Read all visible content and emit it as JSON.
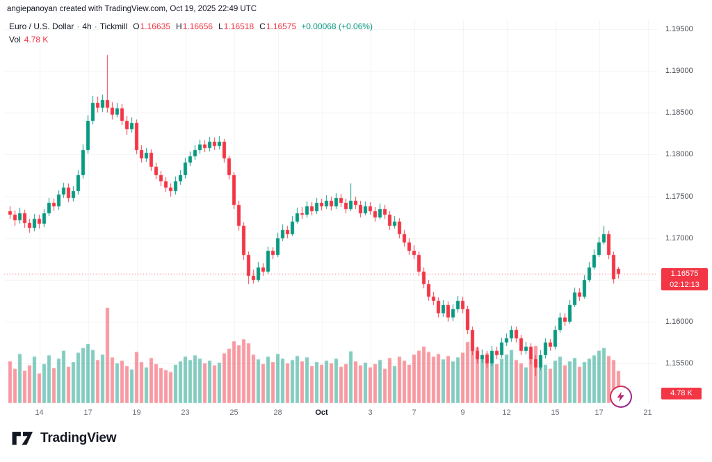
{
  "attribution": "angiepanoyan created with TradingView.com, Oct 19, 2025 22:49 UTC",
  "legend": {
    "symbol_title": "Euro / U.S. Dollar",
    "separator": "·",
    "interval": "4h",
    "exchange": "Tickmill",
    "ohlc": {
      "o_label": "O",
      "o": "1.16635",
      "h_label": "H",
      "h": "1.16656",
      "l_label": "L",
      "l": "1.16518",
      "c_label": "C",
      "c": "1.16575",
      "change": "+0.00068 (+0.06%)"
    },
    "volume_label": "Vol",
    "volume_value": "4.78 K"
  },
  "last_price_label": {
    "price": "1.16575",
    "countdown": "02:12:13"
  },
  "volume_axis_label": "4.78 K",
  "footer": {
    "logo_text": "TradingView"
  },
  "chart_data": {
    "type": "candlestick",
    "title": "Euro / U.S. Dollar · 4h · Tickmill",
    "pair": "Euro / U.S. Dollar",
    "interval": "4h",
    "broker": "Tickmill",
    "legend_note": "grid faint, volume overlay bottom, last-price dotted line",
    "price_axis": {
      "min": 1.155,
      "max": 1.195,
      "tick_step": 0.005,
      "ticks": [
        {
          "label": "1.19500",
          "value": 1.195
        },
        {
          "label": "1.19000",
          "value": 1.19
        },
        {
          "label": "1.18500",
          "value": 1.185
        },
        {
          "label": "1.18000",
          "value": 1.18
        },
        {
          "label": "1.17500",
          "value": 1.175
        },
        {
          "label": "1.17000",
          "value": 1.17
        },
        {
          "label": "1.16500",
          "value": 1.165
        },
        {
          "label": "1.16000",
          "value": 1.16
        },
        {
          "label": "1.15500",
          "value": 1.155
        }
      ]
    },
    "time_axis_ticks": [
      {
        "label": "14",
        "index": 6
      },
      {
        "label": "17",
        "index": 16
      },
      {
        "label": "19",
        "index": 26
      },
      {
        "label": "23",
        "index": 36
      },
      {
        "label": "25",
        "index": 46
      },
      {
        "label": "28",
        "index": 55
      },
      {
        "label": "Oct",
        "index": 64,
        "bold": true
      },
      {
        "label": "3",
        "index": 74
      },
      {
        "label": "7",
        "index": 83
      },
      {
        "label": "9",
        "index": 93
      },
      {
        "label": "12",
        "index": 102
      },
      {
        "label": "15",
        "index": 112
      },
      {
        "label": "17",
        "index": 121
      },
      {
        "label": "21",
        "index": 131
      }
    ],
    "last": {
      "open": 1.16635,
      "high": 1.16656,
      "low": 1.16518,
      "close": 1.16575,
      "change": "+0.00068",
      "change_pct": "+0.06%",
      "countdown": "02:12:13",
      "volume": "4.78 K"
    },
    "colors": {
      "up": "#089981",
      "down": "#F23645",
      "volume_up": "rgba(8,153,129,0.5)",
      "volume_down": "rgba(242,54,69,0.5)",
      "last_price_line": "#F23645",
      "grid": "rgba(42,46,57,0.06)"
    },
    "candles": [
      [
        1.1732,
        1.1738,
        1.1723,
        1.1728
      ],
      [
        1.1728,
        1.1733,
        1.1715,
        1.1721
      ],
      [
        1.1721,
        1.1736,
        1.1717,
        1.173
      ],
      [
        1.173,
        1.1734,
        1.1712,
        1.1718
      ],
      [
        1.1718,
        1.1723,
        1.1706,
        1.1712
      ],
      [
        1.1712,
        1.1729,
        1.1708,
        1.1723
      ],
      [
        1.1723,
        1.1728,
        1.1711,
        1.1717
      ],
      [
        1.1717,
        1.1735,
        1.1713,
        1.173
      ],
      [
        1.173,
        1.1748,
        1.1726,
        1.1742
      ],
      [
        1.1742,
        1.1747,
        1.1733,
        1.1738
      ],
      [
        1.1738,
        1.1757,
        1.1734,
        1.1752
      ],
      [
        1.1752,
        1.1766,
        1.1748,
        1.176
      ],
      [
        1.176,
        1.1765,
        1.1743,
        1.1748
      ],
      [
        1.1748,
        1.1762,
        1.1744,
        1.1756
      ],
      [
        1.1756,
        1.1781,
        1.1752,
        1.1775
      ],
      [
        1.1775,
        1.1812,
        1.1771,
        1.1805
      ],
      [
        1.1805,
        1.1847,
        1.1801,
        1.184
      ],
      [
        1.184,
        1.187,
        1.1836,
        1.1862
      ],
      [
        1.1862,
        1.1869,
        1.185,
        1.1856
      ],
      [
        1.1856,
        1.1872,
        1.1851,
        1.1865
      ],
      [
        1.1865,
        1.1919,
        1.185,
        1.1856
      ],
      [
        1.1856,
        1.1863,
        1.1842,
        1.1848
      ],
      [
        1.1848,
        1.1862,
        1.1844,
        1.1855
      ],
      [
        1.1855,
        1.186,
        1.1835,
        1.184
      ],
      [
        1.184,
        1.1846,
        1.1824,
        1.183
      ],
      [
        1.183,
        1.1844,
        1.1826,
        1.1838
      ],
      [
        1.1838,
        1.1842,
        1.18,
        1.1805
      ],
      [
        1.1805,
        1.1811,
        1.179,
        1.1795
      ],
      [
        1.1795,
        1.1808,
        1.1791,
        1.1802
      ],
      [
        1.1802,
        1.1806,
        1.178,
        1.1785
      ],
      [
        1.1785,
        1.179,
        1.177,
        1.1775
      ],
      [
        1.1775,
        1.178,
        1.1762,
        1.1768
      ],
      [
        1.1768,
        1.1773,
        1.1755,
        1.176
      ],
      [
        1.176,
        1.1765,
        1.175,
        1.1756
      ],
      [
        1.1756,
        1.1774,
        1.1752,
        1.1768
      ],
      [
        1.1768,
        1.1781,
        1.1764,
        1.1775
      ],
      [
        1.1775,
        1.1796,
        1.1771,
        1.179
      ],
      [
        1.179,
        1.1804,
        1.1786,
        1.1798
      ],
      [
        1.1798,
        1.1811,
        1.1794,
        1.1805
      ],
      [
        1.1805,
        1.1818,
        1.1801,
        1.1812
      ],
      [
        1.1812,
        1.1817,
        1.1803,
        1.1808
      ],
      [
        1.1808,
        1.1821,
        1.1804,
        1.1815
      ],
      [
        1.1815,
        1.182,
        1.1805,
        1.181
      ],
      [
        1.181,
        1.1822,
        1.1806,
        1.1815
      ],
      [
        1.1815,
        1.1819,
        1.179,
        1.1795
      ],
      [
        1.1795,
        1.1799,
        1.177,
        1.1775
      ],
      [
        1.1775,
        1.1779,
        1.1735,
        1.174
      ],
      [
        1.174,
        1.1745,
        1.1709,
        1.1715
      ],
      [
        1.1715,
        1.1719,
        1.1674,
        1.168
      ],
      [
        1.168,
        1.1684,
        1.1645,
        1.1655
      ],
      [
        1.1655,
        1.1662,
        1.1646,
        1.165
      ],
      [
        1.165,
        1.1671,
        1.1647,
        1.1665
      ],
      [
        1.1665,
        1.167,
        1.1655,
        1.166
      ],
      [
        1.166,
        1.169,
        1.1657,
        1.1685
      ],
      [
        1.1685,
        1.1689,
        1.1675,
        1.168
      ],
      [
        1.168,
        1.1706,
        1.1677,
        1.17
      ],
      [
        1.17,
        1.1716,
        1.1696,
        1.171
      ],
      [
        1.171,
        1.1715,
        1.17,
        1.1705
      ],
      [
        1.1705,
        1.1726,
        1.1702,
        1.172
      ],
      [
        1.172,
        1.1736,
        1.1717,
        1.173
      ],
      [
        1.173,
        1.1737,
        1.1723,
        1.1728
      ],
      [
        1.1728,
        1.1744,
        1.1725,
        1.1738
      ],
      [
        1.1738,
        1.1743,
        1.1727,
        1.1732
      ],
      [
        1.1732,
        1.1748,
        1.1729,
        1.1742
      ],
      [
        1.1742,
        1.1747,
        1.1733,
        1.1738
      ],
      [
        1.1738,
        1.1751,
        1.1735,
        1.1745
      ],
      [
        1.1745,
        1.175,
        1.1733,
        1.1738
      ],
      [
        1.1738,
        1.1754,
        1.1735,
        1.1748
      ],
      [
        1.1748,
        1.1753,
        1.1737,
        1.1742
      ],
      [
        1.1742,
        1.1747,
        1.173,
        1.1735
      ],
      [
        1.1735,
        1.1765,
        1.1732,
        1.1745
      ],
      [
        1.1745,
        1.175,
        1.1735,
        1.174
      ],
      [
        1.174,
        1.1745,
        1.1725,
        1.173
      ],
      [
        1.173,
        1.1744,
        1.1727,
        1.1738
      ],
      [
        1.1738,
        1.1743,
        1.1728,
        1.1732
      ],
      [
        1.1732,
        1.1737,
        1.172,
        1.1725
      ],
      [
        1.1725,
        1.1741,
        1.1722,
        1.1735
      ],
      [
        1.1735,
        1.174,
        1.1723,
        1.1728
      ],
      [
        1.1728,
        1.1732,
        1.171,
        1.1715
      ],
      [
        1.1715,
        1.1726,
        1.1711,
        1.172
      ],
      [
        1.172,
        1.1724,
        1.17,
        1.1705
      ],
      [
        1.1705,
        1.171,
        1.169,
        1.1695
      ],
      [
        1.1695,
        1.17,
        1.168,
        1.1685
      ],
      [
        1.1685,
        1.1691,
        1.1675,
        1.168
      ],
      [
        1.168,
        1.1684,
        1.1655,
        1.166
      ],
      [
        1.166,
        1.1665,
        1.164,
        1.1645
      ],
      [
        1.1645,
        1.165,
        1.1625,
        1.163
      ],
      [
        1.163,
        1.1636,
        1.162,
        1.1625
      ],
      [
        1.1625,
        1.1629,
        1.1605,
        1.161
      ],
      [
        1.161,
        1.1626,
        1.1606,
        1.162
      ],
      [
        1.162,
        1.1624,
        1.16,
        1.1605
      ],
      [
        1.1605,
        1.1621,
        1.1601,
        1.1615
      ],
      [
        1.1615,
        1.1631,
        1.1611,
        1.1625
      ],
      [
        1.1625,
        1.163,
        1.161,
        1.1615
      ],
      [
        1.1615,
        1.1619,
        1.1585,
        1.159
      ],
      [
        1.159,
        1.1594,
        1.156,
        1.1565
      ],
      [
        1.1565,
        1.157,
        1.155,
        1.1555
      ],
      [
        1.1555,
        1.1567,
        1.1551,
        1.156
      ],
      [
        1.156,
        1.1565,
        1.1545,
        1.155
      ],
      [
        1.155,
        1.1571,
        1.1547,
        1.1565
      ],
      [
        1.1565,
        1.157,
        1.1555,
        1.156
      ],
      [
        1.156,
        1.1581,
        1.1557,
        1.1575
      ],
      [
        1.1575,
        1.1586,
        1.1571,
        1.158
      ],
      [
        1.158,
        1.1595,
        1.1576,
        1.159
      ],
      [
        1.159,
        1.1594,
        1.1575,
        1.158
      ],
      [
        1.158,
        1.1584,
        1.156,
        1.1565
      ],
      [
        1.1565,
        1.1576,
        1.1561,
        1.157
      ],
      [
        1.157,
        1.1574,
        1.1548,
        1.1555
      ],
      [
        1.1555,
        1.156,
        1.1535,
        1.1545
      ],
      [
        1.1545,
        1.1566,
        1.1542,
        1.156
      ],
      [
        1.156,
        1.158,
        1.1556,
        1.1575
      ],
      [
        1.1575,
        1.1579,
        1.1565,
        1.157
      ],
      [
        1.157,
        1.1595,
        1.1567,
        1.159
      ],
      [
        1.159,
        1.1611,
        1.1587,
        1.1605
      ],
      [
        1.1605,
        1.161,
        1.1595,
        1.16
      ],
      [
        1.16,
        1.1626,
        1.1597,
        1.162
      ],
      [
        1.162,
        1.1641,
        1.1617,
        1.1635
      ],
      [
        1.1635,
        1.164,
        1.1625,
        1.163
      ],
      [
        1.163,
        1.1656,
        1.1627,
        1.165
      ],
      [
        1.165,
        1.1671,
        1.1647,
        1.1665
      ],
      [
        1.1665,
        1.1686,
        1.1662,
        1.168
      ],
      [
        1.168,
        1.1701,
        1.1677,
        1.1695
      ],
      [
        1.1695,
        1.1715,
        1.1692,
        1.1705
      ],
      [
        1.1705,
        1.1709,
        1.1675,
        1.168
      ],
      [
        1.168,
        1.1684,
        1.1646,
        1.16507
      ],
      [
        1.16635,
        1.16656,
        1.16518,
        1.16575
      ]
    ],
    "volumes": [
      6.2,
      5.1,
      7.3,
      4.8,
      5.6,
      6.9,
      4.4,
      5.8,
      7.1,
      5.2,
      6.6,
      7.8,
      5.4,
      6.1,
      7.5,
      8.2,
      8.8,
      7.9,
      6.4,
      7.2,
      14.2,
      6.8,
      5.9,
      6.3,
      5.5,
      5.0,
      7.6,
      6.1,
      5.3,
      6.7,
      5.8,
      5.2,
      4.9,
      4.6,
      5.7,
      6.2,
      6.9,
      6.4,
      7.1,
      6.6,
      5.9,
      6.3,
      5.6,
      6.0,
      7.4,
      8.1,
      9.2,
      8.6,
      9.5,
      8.9,
      7.2,
      6.5,
      5.8,
      6.9,
      6.1,
      7.3,
      6.6,
      5.9,
      6.4,
      7.0,
      6.2,
      6.8,
      5.5,
      6.1,
      5.7,
      6.3,
      5.9,
      6.6,
      5.4,
      5.8,
      7.7,
      6.2,
      5.6,
      6.0,
      5.3,
      5.8,
      6.4,
      5.1,
      6.7,
      5.5,
      6.9,
      6.3,
      5.7,
      7.2,
      7.8,
      8.4,
      7.6,
      6.9,
      7.3,
      6.5,
      7.0,
      6.2,
      6.8,
      7.5,
      9.1,
      9.6,
      8.3,
      6.7,
      7.4,
      6.1,
      5.8,
      6.6,
      7.2,
      7.9,
      6.4,
      5.9,
      5.3,
      6.8,
      8.5,
      6.2,
      5.7,
      5.1,
      6.3,
      6.9,
      5.6,
      6.2,
      6.7,
      5.4,
      6.1,
      6.6,
      7.1,
      7.8,
      8.2,
      7.0,
      6.4,
      4.78
    ]
  }
}
